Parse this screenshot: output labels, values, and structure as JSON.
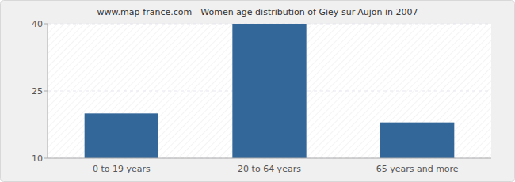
{
  "chart_data": {
    "type": "bar",
    "title": "www.map-france.com - Women age distribution of Giey-sur-Aujon in 2007",
    "categories": [
      "0 to 19 years",
      "20 to 64 years",
      "65 years and more"
    ],
    "values": [
      20,
      40,
      18
    ],
    "color": "#336699",
    "ylim": [
      10,
      40
    ],
    "yticks": [
      10,
      25,
      40
    ],
    "grid": true
  }
}
